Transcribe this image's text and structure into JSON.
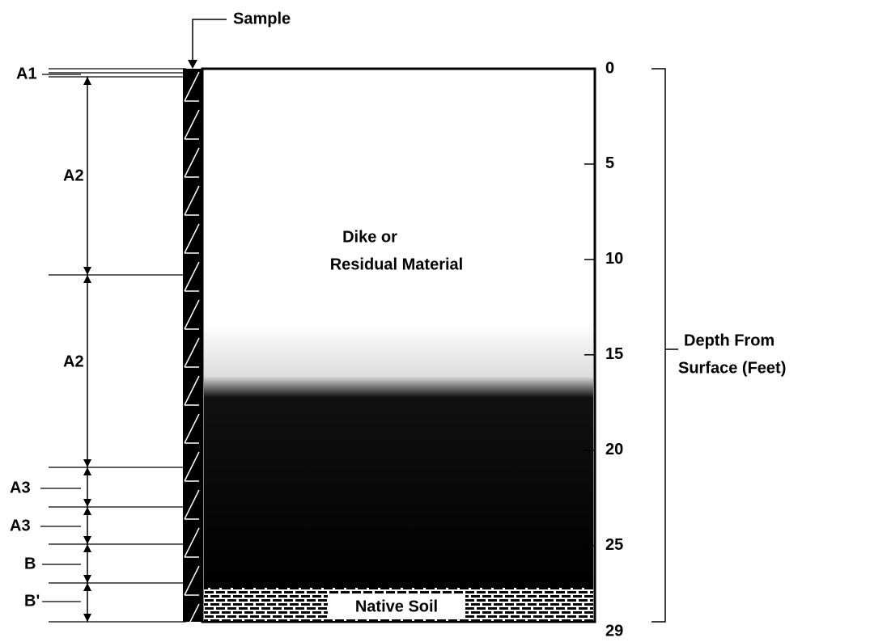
{
  "sample_label": "Sample",
  "layers": [
    "A1",
    "A2",
    "A2",
    "A3",
    "A3",
    "B",
    "B'"
  ],
  "materials": {
    "upper_line1": "Dike or",
    "upper_line2": "Residual Material",
    "bottom": "Native Soil"
  },
  "depth_axis": {
    "title_line1": "Depth From",
    "title_line2": "Surface (Feet)",
    "ticks": [
      0,
      5,
      10,
      15,
      20,
      25,
      29
    ]
  }
}
